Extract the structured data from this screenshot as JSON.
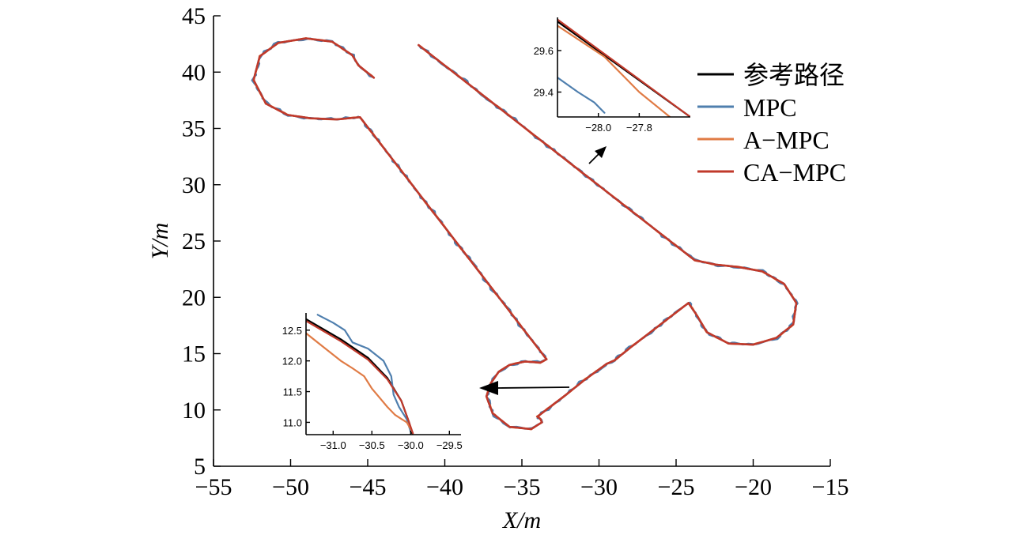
{
  "chart_data": {
    "type": "line",
    "title": "",
    "xlabel": "X/m",
    "ylabel": "Y/m",
    "xlim": [
      -55,
      -15
    ],
    "ylim": [
      5,
      45
    ],
    "xticks": [
      -55,
      -50,
      -45,
      -40,
      -35,
      -30,
      -25,
      -20,
      -15
    ],
    "yticks": [
      5,
      10,
      15,
      20,
      25,
      30,
      35,
      40,
      45
    ],
    "xtick_labels": [
      "−55",
      "−50",
      "−45",
      "−40",
      "−35",
      "−30",
      "−25",
      "−20",
      "−15"
    ],
    "yticks_labels": [
      "5",
      "10",
      "15",
      "20",
      "25",
      "30",
      "35",
      "40",
      "45"
    ],
    "grid": false,
    "legend_position": "top-right",
    "series": [
      {
        "name": "参考路径",
        "color": "#000000",
        "wobble": 0
      },
      {
        "name": "MPC",
        "color": "#4f7fae",
        "wobble": 0.12
      },
      {
        "name": "A−MPC",
        "color": "#e07b45",
        "wobble": 0.03
      },
      {
        "name": "CA−MPC",
        "color": "#c0392b",
        "wobble": 0
      }
    ],
    "path_points": [
      [
        -41.7,
        42.4
      ],
      [
        -23.8,
        23.3
      ],
      [
        -22.4,
        22.9
      ],
      [
        -21.0,
        22.7
      ],
      [
        -19.4,
        22.3
      ],
      [
        -18.0,
        21.2
      ],
      [
        -17.2,
        19.5
      ],
      [
        -17.4,
        17.6
      ],
      [
        -18.5,
        16.4
      ],
      [
        -20.0,
        15.8
      ],
      [
        -21.6,
        15.9
      ],
      [
        -23.0,
        16.9
      ],
      [
        -23.7,
        18.5
      ],
      [
        -24.2,
        19.5
      ],
      [
        -28.0,
        15.5
      ],
      [
        -29.0,
        14.4
      ],
      [
        -29.5,
        14.1
      ],
      [
        -31.0,
        12.6
      ],
      [
        -32.0,
        11.5
      ],
      [
        -34.0,
        9.4
      ],
      [
        -33.8,
        9.2
      ],
      [
        -33.7,
        8.9
      ],
      [
        -34.4,
        8.3
      ],
      [
        -35.8,
        8.5
      ],
      [
        -36.9,
        9.7
      ],
      [
        -37.3,
        11.2
      ],
      [
        -37.0,
        12.4
      ],
      [
        -36.5,
        13.4
      ],
      [
        -35.8,
        14.0
      ],
      [
        -34.8,
        14.3
      ],
      [
        -33.8,
        14.2
      ],
      [
        -33.4,
        14.5
      ],
      [
        -45.5,
        36.0
      ],
      [
        -47.0,
        35.8
      ],
      [
        -48.7,
        35.9
      ],
      [
        -50.2,
        36.2
      ],
      [
        -51.6,
        37.2
      ],
      [
        -52.4,
        39.3
      ],
      [
        -52.0,
        41.4
      ],
      [
        -50.8,
        42.6
      ],
      [
        -49.0,
        43.0
      ],
      [
        -47.3,
        42.7
      ],
      [
        -46.0,
        41.5
      ],
      [
        -45.6,
        40.6
      ],
      [
        -44.6,
        39.5
      ]
    ],
    "insets": [
      {
        "xlim": [
          -28.2,
          -27.55
        ],
        "ylim": [
          29.28,
          29.76
        ],
        "xticks": [
          -28.0,
          -27.8
        ],
        "yticks": [
          29.4,
          29.6
        ],
        "xtick_labels": [
          "−28.0",
          "−27.8"
        ],
        "ytick_labels": [
          "29.4",
          "29.6"
        ],
        "series": [
          {
            "name": "参考路径",
            "points": [
              [
                -28.2,
                29.74
              ],
              [
                -27.55,
                29.28
              ]
            ]
          },
          {
            "name": "MPC",
            "points": [
              [
                -28.2,
                29.47
              ],
              [
                -28.1,
                29.4
              ],
              [
                -28.02,
                29.35
              ],
              [
                -27.97,
                29.3
              ]
            ]
          },
          {
            "name": "A−MPC",
            "points": [
              [
                -28.2,
                29.72
              ],
              [
                -27.97,
                29.57
              ],
              [
                -27.88,
                29.48
              ],
              [
                -27.8,
                29.4
              ],
              [
                -27.65,
                29.28
              ]
            ]
          },
          {
            "name": "CA−MPC",
            "points": [
              [
                -28.2,
                29.75
              ],
              [
                -27.55,
                29.28
              ]
            ]
          }
        ]
      },
      {
        "xlim": [
          -31.35,
          -29.35
        ],
        "ylim": [
          10.8,
          12.78
        ],
        "xticks": [
          -31.0,
          -30.5,
          -30.0,
          -29.5
        ],
        "yticks": [
          11.0,
          11.5,
          12.0,
          12.5
        ],
        "xtick_labels": [
          "−31.0",
          "−30.5",
          "−30.0",
          "−29.5"
        ],
        "ytick_labels": [
          "11.0",
          "11.5",
          "12.0",
          "12.5"
        ],
        "series": [
          {
            "name": "参考路径",
            "points": [
              [
                -31.35,
                12.68
              ],
              [
                -30.9,
                12.35
              ],
              [
                -30.55,
                12.05
              ],
              [
                -30.3,
                11.72
              ],
              [
                -30.12,
                11.35
              ],
              [
                -30.02,
                11.0
              ],
              [
                -29.98,
                10.82
              ]
            ]
          },
          {
            "name": "MPC",
            "points": [
              [
                -31.2,
                12.75
              ],
              [
                -31.0,
                12.62
              ],
              [
                -30.85,
                12.5
              ],
              [
                -30.75,
                12.3
              ],
              [
                -30.55,
                12.2
              ],
              [
                -30.45,
                12.1
              ],
              [
                -30.35,
                12.0
              ],
              [
                -30.25,
                11.75
              ],
              [
                -30.22,
                11.45
              ],
              [
                -30.15,
                11.25
              ],
              [
                -30.05,
                11.05
              ],
              [
                -30.0,
                10.85
              ]
            ]
          },
          {
            "name": "A−MPC",
            "points": [
              [
                -31.35,
                12.45
              ],
              [
                -31.1,
                12.2
              ],
              [
                -30.9,
                12.0
              ],
              [
                -30.75,
                11.88
              ],
              [
                -30.6,
                11.75
              ],
              [
                -30.5,
                11.55
              ],
              [
                -30.4,
                11.4
              ],
              [
                -30.3,
                11.25
              ],
              [
                -30.2,
                11.12
              ],
              [
                -30.05,
                11.0
              ],
              [
                -29.98,
                10.85
              ]
            ]
          },
          {
            "name": "CA−MPC",
            "points": [
              [
                -31.35,
                12.65
              ],
              [
                -30.9,
                12.32
              ],
              [
                -30.55,
                12.02
              ],
              [
                -30.3,
                11.7
              ],
              [
                -30.12,
                11.35
              ],
              [
                -30.02,
                11.0
              ],
              [
                -29.97,
                10.82
              ]
            ]
          }
        ]
      }
    ]
  }
}
